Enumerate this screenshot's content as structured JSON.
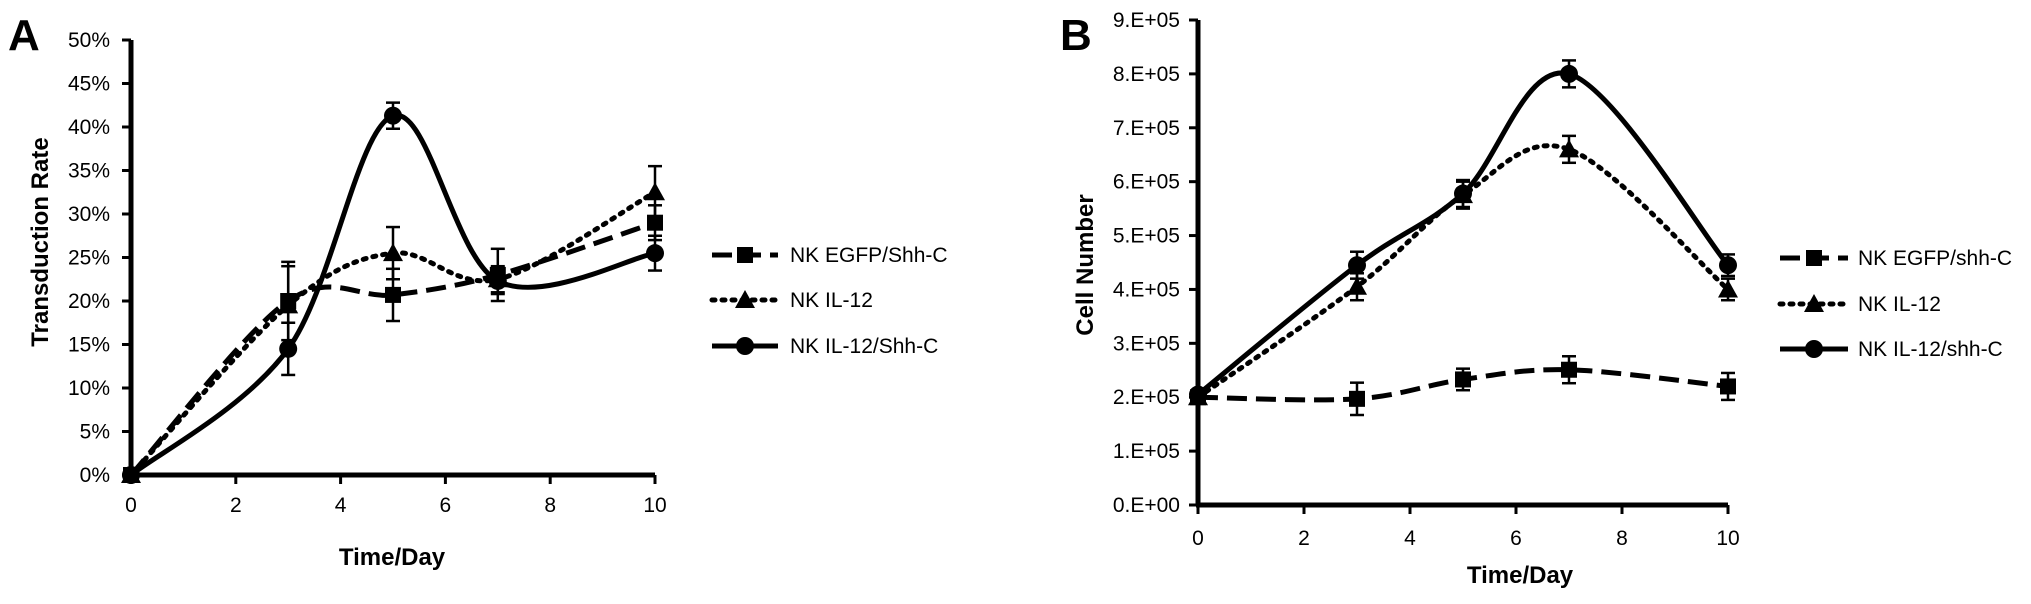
{
  "chart_data": [
    {
      "panel": "A",
      "type": "line",
      "xlabel": "Time/Day",
      "ylabel": "Transduction Rate",
      "xlim": [
        0,
        10
      ],
      "ylim": [
        0,
        50
      ],
      "x_ticks": [
        "0",
        "2",
        "4",
        "6",
        "8",
        "10"
      ],
      "y_ticks": [
        "0%",
        "5%",
        "10%",
        "15%",
        "20%",
        "25%",
        "30%",
        "35%",
        "40%",
        "45%",
        "50%"
      ],
      "legend_position": "right",
      "series": [
        {
          "name": "NK EGFP/Shh-C",
          "marker": "square",
          "line": "dashed",
          "x": [
            0,
            3,
            5,
            7,
            10
          ],
          "y": [
            0,
            20,
            20.7,
            23,
            29
          ],
          "err": [
            0,
            4.5,
            3,
            3,
            2
          ]
        },
        {
          "name": "NK IL-12",
          "marker": "triangle",
          "line": "dotted",
          "x": [
            0,
            3,
            5,
            7,
            10
          ],
          "y": [
            0,
            19.5,
            25.5,
            22.5,
            32.5
          ],
          "err": [
            0,
            4.5,
            3,
            1.5,
            3
          ]
        },
        {
          "name": "NK IL-12/Shh-C",
          "marker": "circle",
          "line": "solid",
          "x": [
            0,
            3,
            5,
            7,
            10
          ],
          "y": [
            0,
            14.5,
            41.3,
            22.3,
            25.5
          ],
          "err": [
            0,
            3,
            1.5,
            1.5,
            2
          ]
        }
      ]
    },
    {
      "panel": "B",
      "type": "line",
      "xlabel": "Time/Day",
      "ylabel": "Cell Number",
      "xlim": [
        0,
        10
      ],
      "ylim": [
        0,
        900000
      ],
      "x_ticks": [
        "0",
        "2",
        "4",
        "6",
        "8",
        "10"
      ],
      "y_ticks": [
        "0.E+00",
        "1.E+05",
        "2.E+05",
        "3.E+05",
        "4.E+05",
        "5.E+05",
        "6.E+05",
        "7.E+05",
        "8.E+05",
        "9.E+05"
      ],
      "legend_position": "right",
      "series": [
        {
          "name": "NK EGFP/shh-C",
          "marker": "square",
          "line": "dashed",
          "x": [
            0,
            3,
            5,
            7,
            10
          ],
          "y": [
            200000,
            197000,
            233000,
            251000,
            220000
          ],
          "err": [
            0,
            30000,
            20000,
            25000,
            25000
          ]
        },
        {
          "name": "NK IL-12",
          "marker": "triangle",
          "line": "dotted",
          "x": [
            0,
            3,
            5,
            7,
            10
          ],
          "y": [
            200000,
            405000,
            575000,
            660000,
            400000
          ],
          "err": [
            0,
            25000,
            25000,
            25000,
            20000
          ]
        },
        {
          "name": "NK IL-12/shh-C",
          "marker": "circle",
          "line": "solid",
          "x": [
            0,
            3,
            5,
            7,
            10
          ],
          "y": [
            205000,
            445000,
            578000,
            800000,
            445000
          ],
          "err": [
            0,
            25000,
            25000,
            25000,
            20000
          ]
        }
      ]
    }
  ]
}
